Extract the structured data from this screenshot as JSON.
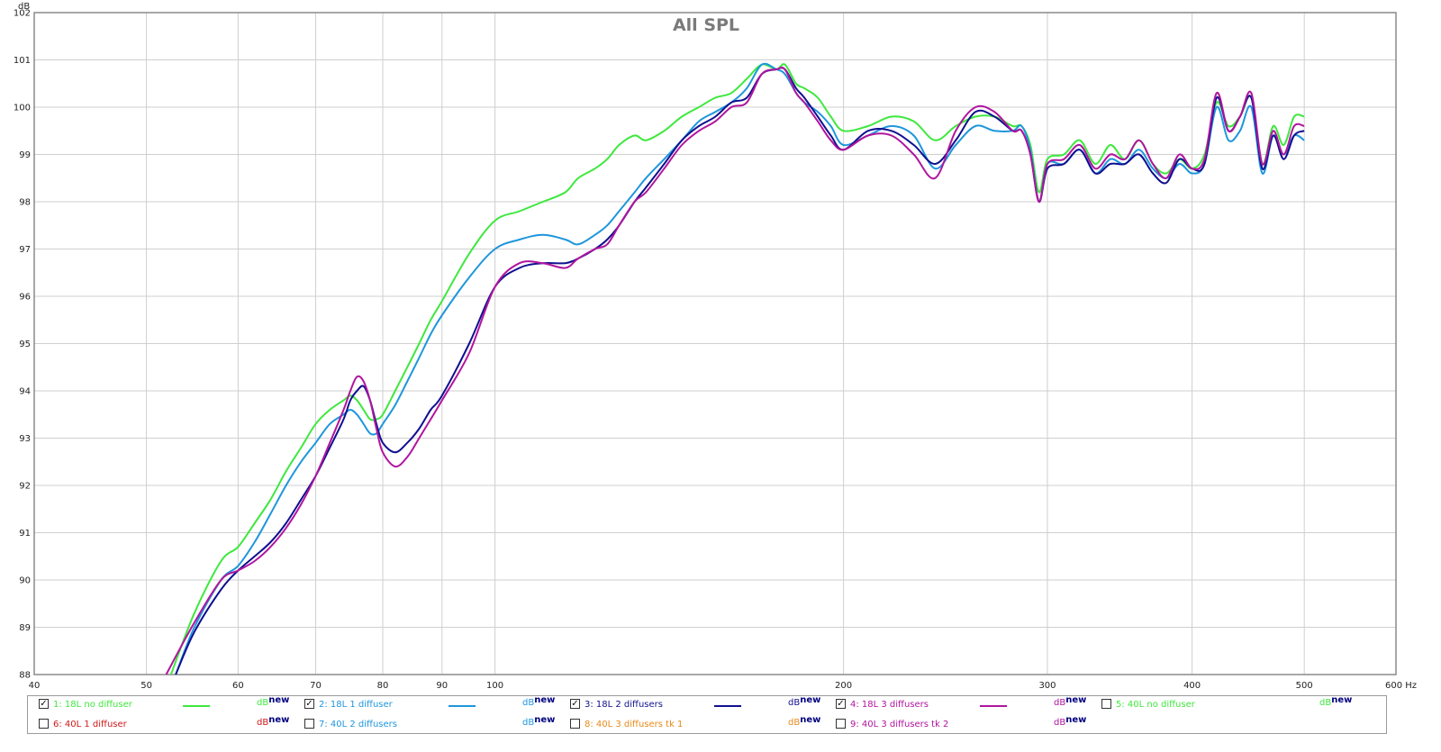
{
  "chart_data": {
    "type": "line",
    "title": "All SPL",
    "ylabel": "dB",
    "xlabel": "Hz",
    "x_scale": "log",
    "xlim": [
      40,
      600
    ],
    "ylim": [
      88,
      102
    ],
    "x_ticks": [
      40,
      50,
      60,
      70,
      80,
      90,
      100,
      200,
      300,
      400,
      500,
      600
    ],
    "x_tick_labels": [
      "40",
      "50",
      "60",
      "70",
      "80",
      "90",
      "100",
      "200",
      "300",
      "400",
      "500",
      "600 Hz"
    ],
    "y_ticks": [
      88,
      89,
      90,
      91,
      92,
      93,
      94,
      95,
      96,
      97,
      98,
      99,
      100,
      101,
      102
    ],
    "grid": true,
    "legend_position": "bottom",
    "series": [
      {
        "name": "1: 18L no diffuser",
        "color": "#3ee83e",
        "x": [
          52.5,
          55,
          58,
          60,
          62,
          64,
          66,
          68,
          70,
          72,
          74,
          75,
          76,
          77,
          78,
          79,
          80,
          82,
          84,
          86,
          88,
          90,
          95,
          100,
          105,
          110,
          115,
          118,
          122,
          125,
          128,
          132,
          135,
          140,
          145,
          150,
          155,
          160,
          165,
          170,
          175,
          178,
          182,
          185,
          190,
          195,
          200,
          210,
          220,
          230,
          240,
          250,
          260,
          270,
          280,
          285,
          290,
          295,
          300,
          310,
          320,
          330,
          340,
          350,
          360,
          370,
          380,
          390,
          400,
          410,
          420,
          430,
          440,
          450,
          460,
          470,
          480,
          490,
          500
        ],
        "values": [
          88,
          89.3,
          90.4,
          90.7,
          91.2,
          91.7,
          92.3,
          92.8,
          93.3,
          93.6,
          93.8,
          93.9,
          93.8,
          93.6,
          93.4,
          93.4,
          93.5,
          94.0,
          94.5,
          95.0,
          95.5,
          95.9,
          96.9,
          97.6,
          97.8,
          98.0,
          98.2,
          98.5,
          98.7,
          98.9,
          99.2,
          99.4,
          99.3,
          99.5,
          99.8,
          100.0,
          100.2,
          100.3,
          100.6,
          100.9,
          100.8,
          100.9,
          100.5,
          100.4,
          100.2,
          99.8,
          99.5,
          99.6,
          99.8,
          99.7,
          99.3,
          99.6,
          99.8,
          99.8,
          99.6,
          99.6,
          99.2,
          98.2,
          98.9,
          99.0,
          99.3,
          98.8,
          99.2,
          98.9,
          99.3,
          98.8,
          98.6,
          98.9,
          98.7,
          99.0,
          100.1,
          99.6,
          99.8,
          100.2,
          98.8,
          99.6,
          99.2,
          99.8,
          99.8
        ]
      },
      {
        "name": "2: 18L 1 diffuser",
        "color": "#1e96dc",
        "x": [
          53,
          55,
          58,
          60,
          62,
          64,
          66,
          68,
          70,
          72,
          74,
          75,
          76,
          77,
          78,
          79,
          80,
          82,
          84,
          86,
          88,
          90,
          95,
          100,
          105,
          110,
          115,
          118,
          122,
          125,
          128,
          132,
          135,
          140,
          145,
          150,
          155,
          160,
          165,
          170,
          175,
          178,
          182,
          185,
          190,
          195,
          200,
          210,
          220,
          230,
          240,
          250,
          260,
          270,
          280,
          285,
          290,
          295,
          300,
          310,
          320,
          330,
          340,
          350,
          360,
          370,
          380,
          390,
          400,
          410,
          420,
          430,
          440,
          450,
          460,
          470,
          480,
          490,
          500
        ],
        "values": [
          88,
          89.0,
          90.0,
          90.3,
          90.8,
          91.4,
          92.0,
          92.5,
          92.9,
          93.3,
          93.5,
          93.6,
          93.5,
          93.3,
          93.1,
          93.1,
          93.3,
          93.7,
          94.2,
          94.7,
          95.2,
          95.6,
          96.4,
          97.0,
          97.2,
          97.3,
          97.2,
          97.1,
          97.3,
          97.5,
          97.8,
          98.2,
          98.5,
          98.9,
          99.3,
          99.7,
          99.9,
          100.1,
          100.4,
          100.9,
          100.8,
          100.7,
          100.3,
          100.1,
          99.9,
          99.6,
          99.2,
          99.4,
          99.6,
          99.4,
          98.7,
          99.2,
          99.6,
          99.5,
          99.5,
          99.6,
          99.1,
          98.0,
          98.8,
          98.8,
          99.1,
          98.6,
          98.9,
          98.8,
          99.1,
          98.7,
          98.5,
          98.8,
          98.6,
          98.8,
          100.0,
          99.3,
          99.5,
          100.0,
          98.6,
          99.4,
          99.0,
          99.4,
          99.3
        ]
      },
      {
        "name": "3: 18L 2 diffusers",
        "color": "#101090",
        "x": [
          53,
          55,
          58,
          60,
          62,
          64,
          66,
          68,
          70,
          72,
          74,
          75,
          76,
          77,
          78,
          79,
          80,
          82,
          84,
          86,
          88,
          90,
          95,
          100,
          105,
          110,
          115,
          118,
          122,
          125,
          128,
          132,
          135,
          140,
          145,
          150,
          155,
          160,
          165,
          170,
          175,
          178,
          182,
          185,
          190,
          195,
          200,
          210,
          220,
          230,
          240,
          250,
          260,
          270,
          280,
          285,
          290,
          295,
          300,
          310,
          320,
          330,
          340,
          350,
          360,
          370,
          380,
          390,
          400,
          410,
          420,
          430,
          440,
          450,
          460,
          470,
          480,
          490,
          500
        ],
        "values": [
          88,
          88.9,
          89.8,
          90.2,
          90.5,
          90.8,
          91.2,
          91.7,
          92.2,
          92.8,
          93.4,
          93.8,
          94.0,
          94.1,
          93.8,
          93.3,
          92.9,
          92.7,
          92.9,
          93.2,
          93.6,
          93.9,
          95.0,
          96.2,
          96.6,
          96.7,
          96.7,
          96.8,
          97.0,
          97.2,
          97.5,
          98.0,
          98.3,
          98.8,
          99.3,
          99.6,
          99.8,
          100.1,
          100.2,
          100.7,
          100.8,
          100.8,
          100.4,
          100.2,
          99.8,
          99.4,
          99.1,
          99.5,
          99.5,
          99.2,
          98.8,
          99.3,
          99.9,
          99.8,
          99.5,
          99.5,
          99.0,
          98.0,
          98.7,
          98.8,
          99.1,
          98.6,
          98.8,
          98.8,
          99.0,
          98.6,
          98.4,
          98.9,
          98.7,
          98.8,
          100.2,
          99.5,
          99.8,
          100.2,
          98.7,
          99.4,
          98.9,
          99.4,
          99.5
        ]
      },
      {
        "name": "4: 18L 3 diffusers",
        "color": "#b0159e",
        "x": [
          52,
          55,
          58,
          60,
          62,
          64,
          66,
          68,
          70,
          72,
          74,
          75,
          76,
          77,
          78,
          79,
          80,
          82,
          84,
          86,
          88,
          90,
          95,
          100,
          105,
          110,
          115,
          118,
          122,
          125,
          128,
          132,
          135,
          140,
          145,
          150,
          155,
          160,
          165,
          170,
          175,
          178,
          182,
          185,
          190,
          195,
          200,
          210,
          220,
          230,
          240,
          250,
          260,
          270,
          280,
          285,
          290,
          295,
          300,
          310,
          320,
          330,
          340,
          350,
          360,
          370,
          380,
          390,
          400,
          410,
          420,
          430,
          440,
          450,
          460,
          470,
          480,
          490,
          500
        ],
        "values": [
          88,
          89.1,
          90.0,
          90.2,
          90.4,
          90.7,
          91.1,
          91.6,
          92.2,
          92.9,
          93.6,
          94.0,
          94.3,
          94.2,
          93.8,
          93.2,
          92.7,
          92.4,
          92.6,
          93.0,
          93.4,
          93.8,
          94.8,
          96.2,
          96.7,
          96.7,
          96.6,
          96.8,
          97.0,
          97.1,
          97.5,
          98.0,
          98.2,
          98.7,
          99.2,
          99.5,
          99.7,
          100.0,
          100.1,
          100.7,
          100.8,
          100.8,
          100.3,
          100.1,
          99.7,
          99.3,
          99.1,
          99.4,
          99.4,
          99.0,
          98.5,
          99.5,
          100.0,
          99.9,
          99.5,
          99.5,
          99.0,
          98.0,
          98.8,
          98.9,
          99.2,
          98.7,
          99.0,
          98.9,
          99.3,
          98.8,
          98.5,
          99.0,
          98.7,
          98.9,
          100.3,
          99.5,
          99.8,
          100.3,
          98.8,
          99.5,
          99.0,
          99.6,
          99.6
        ]
      }
    ]
  },
  "legend": {
    "unit_text": "dB",
    "unit_sup": "new",
    "items": [
      {
        "label": "1: 18L no diffuser",
        "checked": "✓",
        "color": "#3ee83e",
        "show_swatch": true
      },
      {
        "label": "2: 18L 1 diffuser",
        "checked": "✓",
        "color": "#1e96dc",
        "show_swatch": true
      },
      {
        "label": "3: 18L 2 diffusers",
        "checked": "✓",
        "color": "#101090",
        "show_swatch": true
      },
      {
        "label": "4: 18L 3 diffusers",
        "checked": "✓",
        "color": "#b0159e",
        "show_swatch": true
      },
      {
        "label": "5: 40L no diffuser",
        "checked": "",
        "color": "#3ee83e",
        "show_swatch": false
      },
      {
        "label": "6: 40L 1 diffuser",
        "checked": "",
        "color": "#d01818",
        "show_swatch": false
      },
      {
        "label": "7: 40L 2 diffusers",
        "checked": "",
        "color": "#1e96dc",
        "show_swatch": false
      },
      {
        "label": "8: 40L 3 diffusers tk 1",
        "checked": "",
        "color": "#e88a1a",
        "show_swatch": false
      },
      {
        "label": "9: 40L 3 diffusers tk 2",
        "checked": "",
        "color": "#b0159e",
        "show_swatch": false
      }
    ]
  }
}
